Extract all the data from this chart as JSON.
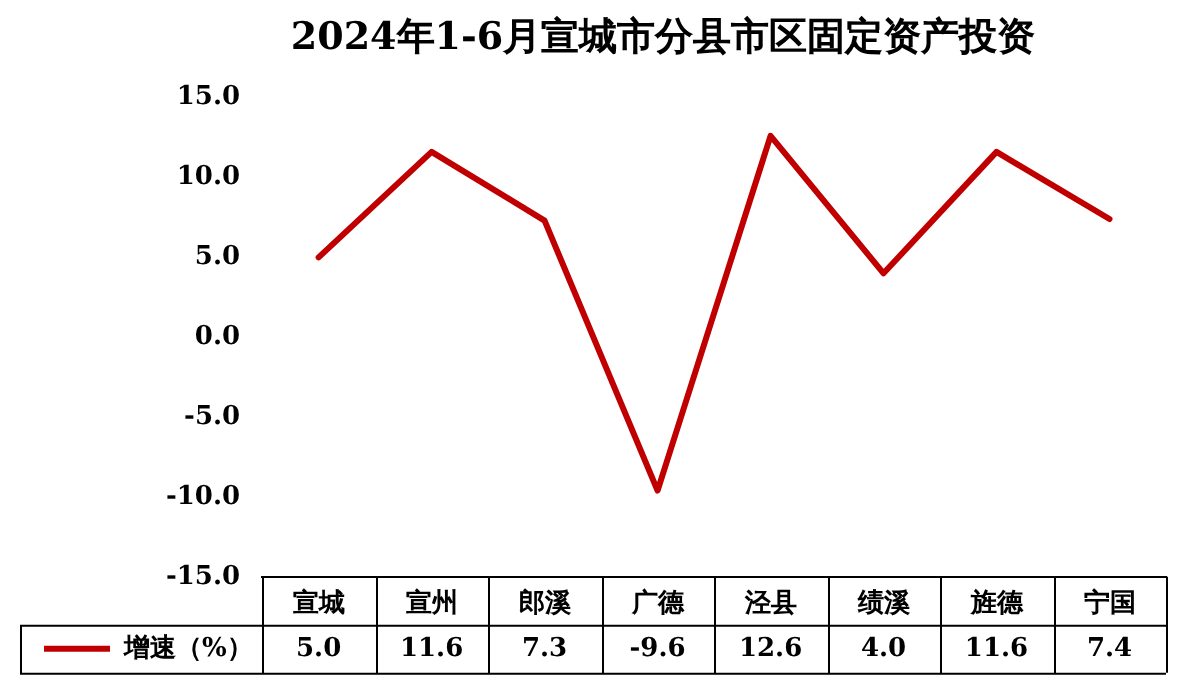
{
  "chart_data": {
    "type": "line",
    "title": "2024年1-6月宣城市分县市区固定资产投资",
    "categories": [
      "宣城",
      "宣州",
      "郎溪",
      "广德",
      "泾县",
      "绩溪",
      "旌德",
      "宁国"
    ],
    "series": [
      {
        "name": "增速（%）",
        "color": "#c00000",
        "values": [
          5.0,
          11.6,
          7.3,
          -9.6,
          12.6,
          4.0,
          11.6,
          7.4
        ],
        "value_labels": [
          "5.0",
          "11.6",
          "7.3",
          "-9.6",
          "12.6",
          "4.0",
          "11.6",
          "7.4"
        ]
      }
    ],
    "ylim": [
      -15,
      15
    ],
    "yticks": [
      {
        "value": -15,
        "label": "-15.0"
      },
      {
        "value": -10,
        "label": "-10.0"
      },
      {
        "value": -5,
        "label": "-5.0"
      },
      {
        "value": 0,
        "label": "0.0"
      },
      {
        "value": 5,
        "label": "5.0"
      },
      {
        "value": 10,
        "label": "10.0"
      },
      {
        "value": 15,
        "label": "15.0"
      }
    ],
    "grid": false,
    "legend": "bottom",
    "marker": "none",
    "line_style": "solid"
  }
}
